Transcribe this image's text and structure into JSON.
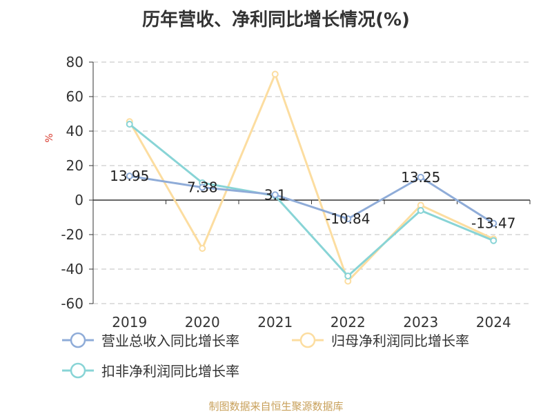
{
  "chart_data": {
    "type": "line",
    "title": "历年营收、净利同比增长情况(%)",
    "ylabel": "%",
    "categories": [
      "2019",
      "2020",
      "2021",
      "2022",
      "2023",
      "2024"
    ],
    "ylim": [
      -60,
      80
    ],
    "yticks": [
      80,
      60,
      40,
      20,
      0,
      -20,
      -40,
      -60
    ],
    "grid": true,
    "legend_position": "bottom",
    "series": [
      {
        "name": "营业总收入同比增长率",
        "color": "#8facd8",
        "values": [
          13.95,
          7.38,
          3.1,
          -10.84,
          13.25,
          -13.47
        ],
        "labels": [
          "13.95",
          "7.38",
          "3.1",
          "-10.84",
          "13.25",
          "-13.47"
        ]
      },
      {
        "name": "归母净利润同比增长率",
        "color": "#fcdda0",
        "values": [
          45.5,
          -28,
          73,
          -47,
          -3,
          -22.5
        ]
      },
      {
        "name": "扣非净利润同比增长率",
        "color": "#88d4d6",
        "values": [
          44,
          10,
          2.5,
          -44,
          -6,
          -23.5
        ]
      }
    ]
  },
  "source": "制图数据来自恒生聚源数据库"
}
